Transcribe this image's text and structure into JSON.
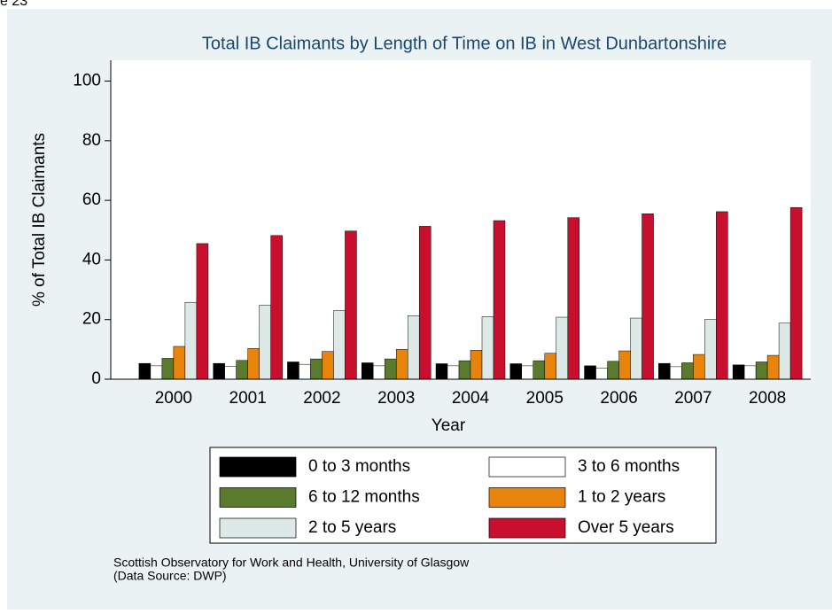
{
  "caption": "e 23",
  "chart_data": {
    "type": "bar",
    "title": "Total IB Claimants by Length of Time on IB in West Dunbartonshire",
    "x_label": "Year",
    "y_label": "% of Total IB Claimants",
    "categories": [
      "2000",
      "2001",
      "2002",
      "2003",
      "2004",
      "2005",
      "2006",
      "2007",
      "2008"
    ],
    "series": [
      {
        "name": "0 to 3 months",
        "color": "#000000",
        "values": [
          5.3,
          5.3,
          5.8,
          5.5,
          5.2,
          5.2,
          4.5,
          5.3,
          4.8
        ]
      },
      {
        "name": "3 to 6 months",
        "color": "#ffffff",
        "values": [
          4.5,
          4.3,
          5.0,
          4.5,
          4.5,
          4.5,
          3.7,
          4.2,
          4.5
        ]
      },
      {
        "name": "6 to 12 months",
        "color": "#5a7a2e",
        "values": [
          7.0,
          6.3,
          6.8,
          6.8,
          6.2,
          6.2,
          6.0,
          5.5,
          5.8
        ]
      },
      {
        "name": "1 to 2 years",
        "color": "#e8830c",
        "values": [
          11.0,
          10.3,
          9.3,
          10.0,
          9.7,
          8.7,
          9.5,
          8.3,
          8.0
        ]
      },
      {
        "name": "2 to 5 years",
        "color": "#dde9e7",
        "values": [
          25.8,
          24.8,
          23.0,
          21.3,
          21.0,
          20.8,
          20.5,
          20.0,
          18.8
        ]
      },
      {
        "name": "Over 5 years",
        "color": "#c8102e",
        "values": [
          45.5,
          48.2,
          49.7,
          51.3,
          53.2,
          54.2,
          55.5,
          56.2,
          57.6
        ]
      }
    ],
    "ylim": [
      0,
      107
    ],
    "yticks": [
      0,
      20,
      40,
      60,
      80,
      100
    ],
    "footnote": [
      "Scottish Observatory for Work and Health, University of Glasgow",
      "(Data Source: DWP)"
    ]
  }
}
